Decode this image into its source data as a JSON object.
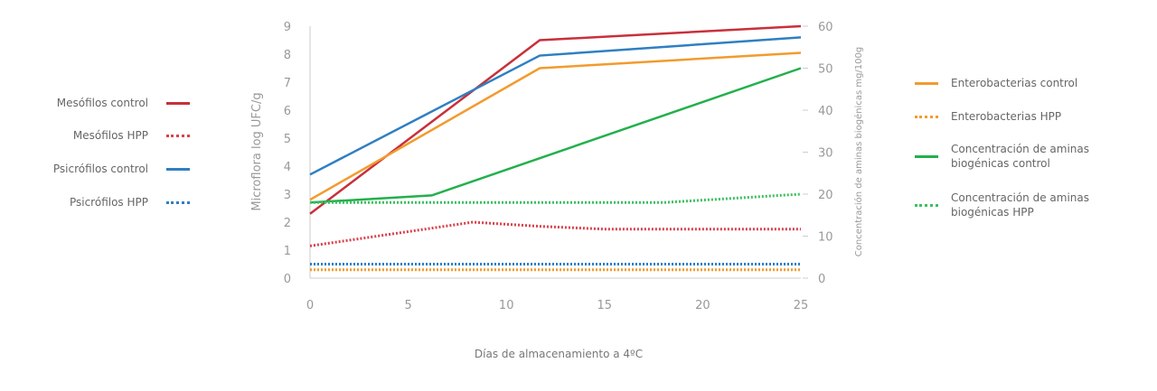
{
  "chart_data": {
    "type": "line",
    "xlabel": "Días de almacenamiento a 4ºC",
    "ylabel": "Microflora log UFC/g",
    "y2label": "Concentración de aminas biogénicas mg/100g",
    "xlim": [
      0,
      25
    ],
    "ylim": [
      0,
      9
    ],
    "y2lim": [
      0,
      60
    ],
    "xticks": [
      0,
      5,
      10,
      15,
      20,
      25
    ],
    "yticks": [
      0,
      1,
      2,
      3,
      4,
      5,
      6,
      7,
      8,
      9
    ],
    "y2ticks": [
      0,
      10,
      20,
      30,
      40,
      50,
      60
    ],
    "grid": false,
    "series": [
      {
        "name": "Mesófilos control",
        "color": "#c8303a",
        "style": "solid",
        "axis": "left",
        "x": [
          0,
          11.7,
          25
        ],
        "y": [
          2.3,
          8.5,
          9.0
        ]
      },
      {
        "name": "Mesófilos HPP",
        "color": "#d9414b",
        "style": "dotted",
        "axis": "left",
        "x": [
          0,
          8.3,
          11.7,
          15,
          25
        ],
        "y": [
          1.15,
          2.0,
          1.85,
          1.75,
          1.75
        ]
      },
      {
        "name": "Psicrófilos control",
        "color": "#2f7fc1",
        "style": "solid",
        "axis": "left",
        "x": [
          0,
          11.7,
          25
        ],
        "y": [
          3.7,
          7.95,
          8.6
        ]
      },
      {
        "name": "Psicrófilos HPP",
        "color": "#2f7fc1",
        "style": "dotted",
        "axis": "left",
        "x": [
          0,
          25
        ],
        "y": [
          0.5,
          0.5
        ]
      },
      {
        "name": "Enterobacterias control",
        "color": "#f29b2e",
        "style": "solid",
        "axis": "left",
        "x": [
          0,
          11.7,
          25
        ],
        "y": [
          2.8,
          7.5,
          8.05
        ]
      },
      {
        "name": "Enterobacterias HPP",
        "color": "#f29b2e",
        "style": "dotted",
        "axis": "left",
        "x": [
          0,
          25
        ],
        "y": [
          0.3,
          0.3
        ]
      },
      {
        "name": "Concentración de aminas biogénicas control",
        "color": "#22b04b",
        "style": "solid",
        "axis": "right",
        "x": [
          0,
          6.2,
          25
        ],
        "y": [
          18,
          19.7,
          50
        ]
      },
      {
        "name": "Concentración de aminas biogénicas HPP",
        "color": "#3cc060",
        "style": "dotted",
        "axis": "right",
        "x": [
          0,
          18,
          25
        ],
        "y": [
          18,
          18,
          20
        ]
      }
    ],
    "legend_left": [
      "Mesófilos control",
      "Mesófilos HPP",
      "Psicrófilos control",
      "Psicrófilos HPP"
    ],
    "legend_right": [
      "Enterobacterias control",
      "Enterobacterias HPP",
      "Concentración de aminas biogénicas control",
      "Concentración de aminas biogénicas HPP"
    ]
  }
}
